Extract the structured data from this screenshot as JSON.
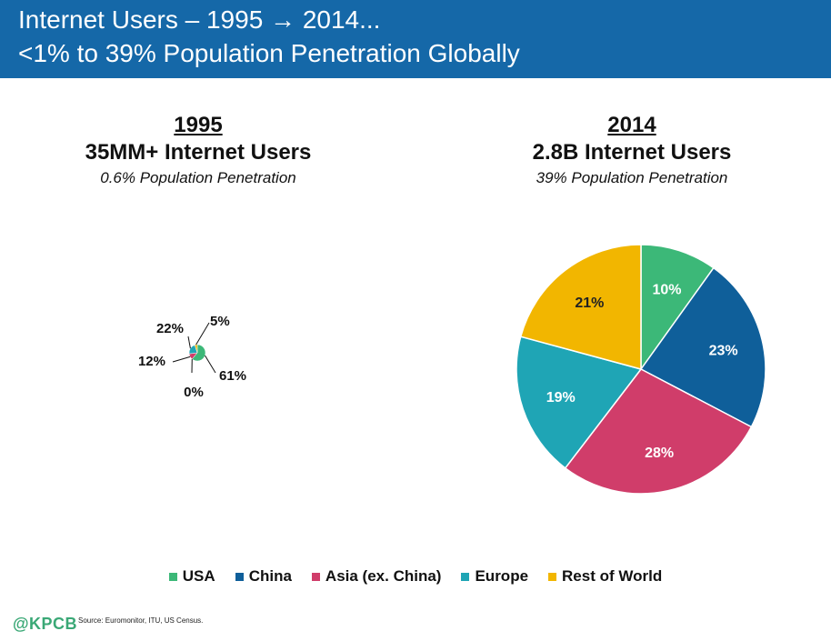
{
  "header": {
    "title_line1": "Internet Users – 1995 → 2014...",
    "title_line2": "<1% to 39% Population Penetration Globally"
  },
  "colors": {
    "header_bg": "#1568a8",
    "usa": "#3cb878",
    "china": "#0f5f9a",
    "asia": "#d03d6a",
    "europe": "#1fa5b5",
    "rest": "#f2b600"
  },
  "panels": [
    {
      "year": "1995",
      "users": "35MM+ Internet Users",
      "penetration": "0.6% Population Penetration"
    },
    {
      "year": "2014",
      "users": "2.8B Internet Users",
      "penetration": "39% Population Penetration"
    }
  ],
  "chart_data": [
    {
      "type": "pie",
      "title": "1995",
      "categories": [
        "USA",
        "China",
        "Asia (ex. China)",
        "Europe",
        "Rest of World"
      ],
      "values": [
        61,
        0,
        12,
        22,
        5
      ],
      "labels": [
        "61%",
        "0%",
        "12%",
        "22%",
        "5%"
      ]
    },
    {
      "type": "pie",
      "title": "2014",
      "categories": [
        "USA",
        "China",
        "Asia (ex. China)",
        "Europe",
        "Rest of World"
      ],
      "values": [
        10,
        23,
        28,
        19,
        21
      ],
      "labels": [
        "10%",
        "23%",
        "28%",
        "19%",
        "21%"
      ]
    }
  ],
  "legend": [
    {
      "label": "USA",
      "color": "#3cb878"
    },
    {
      "label": "China",
      "color": "#0f5f9a"
    },
    {
      "label": "Asia (ex. China)",
      "color": "#d03d6a"
    },
    {
      "label": "Europe",
      "color": "#1fa5b5"
    },
    {
      "label": "Rest of World",
      "color": "#f2b600"
    }
  ],
  "footer": {
    "logo": "@KPCB",
    "source": "Source: Euromonitor, ITU, US Census."
  }
}
